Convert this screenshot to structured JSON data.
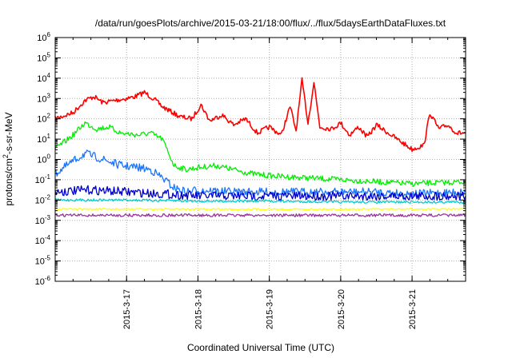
{
  "chart_data": {
    "type": "line",
    "title": "/data/run/goesPlots/archive/2015-03-21/18:00/flux/../flux/5daysEarthDataFluxes.txt",
    "xlabel": "Coordinated Universal Time (UTC)",
    "ylabel": {
      "pre": "protons/cm",
      "sup": "2",
      "post": "-s-sr-MeV"
    },
    "yscale": "log",
    "ylim": [
      -6,
      6
    ],
    "xlim": [
      "2015-03-16T00:00",
      "2015-03-21T18:00"
    ],
    "grid": true,
    "legend": "none",
    "y_ticks": [
      {
        "base": "10",
        "exp": "6"
      },
      {
        "base": "10",
        "exp": "5"
      },
      {
        "base": "10",
        "exp": "4"
      },
      {
        "base": "10",
        "exp": "3"
      },
      {
        "base": "10",
        "exp": "2"
      },
      {
        "base": "10",
        "exp": "1"
      },
      {
        "base": "10",
        "exp": "0"
      },
      {
        "base": "10",
        "exp": "-1"
      },
      {
        "base": "10",
        "exp": "-2"
      },
      {
        "base": "10",
        "exp": "-3"
      },
      {
        "base": "10",
        "exp": "-4"
      },
      {
        "base": "10",
        "exp": "-5"
      },
      {
        "base": "10",
        "exp": "-6"
      }
    ],
    "x_ticks": [
      {
        "label": "2015-3-17",
        "x": "2015-03-17T00:00"
      },
      {
        "label": "2015-3-18",
        "x": "2015-03-18T00:00"
      },
      {
        "label": "2015-3-19",
        "x": "2015-03-19T00:00"
      },
      {
        "label": "2015-3-20",
        "x": "2015-03-20T00:00"
      },
      {
        "label": "2015-3-21",
        "x": "2015-03-21T00:00"
      }
    ],
    "series": [
      {
        "color": "#ff0000",
        "points": [
          [
            "2015-03-16T00:00",
            2.0
          ],
          [
            "2015-03-16T06:00",
            2.3
          ],
          [
            "2015-03-16T10:00",
            2.9
          ],
          [
            "2015-03-16T13:00",
            3.1
          ],
          [
            "2015-03-16T16:00",
            2.8
          ],
          [
            "2015-03-16T20:00",
            2.9
          ],
          [
            "2015-03-17T00:00",
            3.0
          ],
          [
            "2015-03-17T03:00",
            3.1
          ],
          [
            "2015-03-17T06:00",
            3.3
          ],
          [
            "2015-03-17T09:00",
            3.0
          ],
          [
            "2015-03-17T12:00",
            2.6
          ],
          [
            "2015-03-17T18:00",
            2.1
          ],
          [
            "2015-03-17T22:00",
            2.0
          ],
          [
            "2015-03-18T01:00",
            2.7
          ],
          [
            "2015-03-18T04:00",
            1.9
          ],
          [
            "2015-03-18T08:00",
            2.2
          ],
          [
            "2015-03-18T12:00",
            1.7
          ],
          [
            "2015-03-18T16:00",
            2.0
          ],
          [
            "2015-03-18T20:00",
            1.3
          ],
          [
            "2015-03-19T00:00",
            1.6
          ],
          [
            "2015-03-19T04:00",
            1.2
          ],
          [
            "2015-03-19T07:00",
            2.6
          ],
          [
            "2015-03-19T09:00",
            1.4
          ],
          [
            "2015-03-19T11:00",
            3.9
          ],
          [
            "2015-03-19T13:00",
            1.8
          ],
          [
            "2015-03-19T15:00",
            3.8
          ],
          [
            "2015-03-19T17:00",
            1.6
          ],
          [
            "2015-03-19T21:00",
            1.5
          ],
          [
            "2015-03-20T00:00",
            1.8
          ],
          [
            "2015-03-20T03:00",
            1.2
          ],
          [
            "2015-03-20T06:00",
            1.6
          ],
          [
            "2015-03-20T09:00",
            1.1
          ],
          [
            "2015-03-20T12:00",
            1.7
          ],
          [
            "2015-03-20T16:00",
            1.3
          ],
          [
            "2015-03-20T20:00",
            0.9
          ],
          [
            "2015-03-21T00:00",
            0.5
          ],
          [
            "2015-03-21T04:00",
            0.7
          ],
          [
            "2015-03-21T06:00",
            2.3
          ],
          [
            "2015-03-21T09:00",
            1.5
          ],
          [
            "2015-03-21T12:00",
            1.7
          ],
          [
            "2015-03-21T15:00",
            1.3
          ],
          [
            "2015-03-21T18:00",
            1.3
          ]
        ]
      },
      {
        "color": "#00ee00",
        "points": [
          [
            "2015-03-16T00:00",
            0.5
          ],
          [
            "2015-03-16T06:00",
            1.2
          ],
          [
            "2015-03-16T10:00",
            1.8
          ],
          [
            "2015-03-16T14:00",
            1.5
          ],
          [
            "2015-03-16T18:00",
            1.6
          ],
          [
            "2015-03-16T22:00",
            1.3
          ],
          [
            "2015-03-17T04:00",
            1.2
          ],
          [
            "2015-03-17T08:00",
            1.3
          ],
          [
            "2015-03-17T12:00",
            1.0
          ],
          [
            "2015-03-17T16:00",
            -0.3
          ],
          [
            "2015-03-17T20:00",
            -0.5
          ],
          [
            "2015-03-18T00:00",
            -0.4
          ],
          [
            "2015-03-18T06:00",
            -0.3
          ],
          [
            "2015-03-18T12:00",
            -0.5
          ],
          [
            "2015-03-18T18:00",
            -0.7
          ],
          [
            "2015-03-19T00:00",
            -0.8
          ],
          [
            "2015-03-19T12:00",
            -0.9
          ],
          [
            "2015-03-20T00:00",
            -1.0
          ],
          [
            "2015-03-20T12:00",
            -1.1
          ],
          [
            "2015-03-21T00:00",
            -1.2
          ],
          [
            "2015-03-21T18:00",
            -1.1
          ]
        ]
      },
      {
        "color": "#1a75ff",
        "points": [
          [
            "2015-03-16T00:00",
            -0.7
          ],
          [
            "2015-03-16T06:00",
            -0.1
          ],
          [
            "2015-03-16T10:00",
            0.3
          ],
          [
            "2015-03-16T14:00",
            0.1
          ],
          [
            "2015-03-16T18:00",
            -0.1
          ],
          [
            "2015-03-16T22:00",
            -0.3
          ],
          [
            "2015-03-17T04:00",
            -0.4
          ],
          [
            "2015-03-17T08:00",
            -0.5
          ],
          [
            "2015-03-17T12:00",
            -0.9
          ],
          [
            "2015-03-17T16:00",
            -1.4
          ],
          [
            "2015-03-17T20:00",
            -1.6
          ],
          [
            "2015-03-18T00:00",
            -1.5
          ],
          [
            "2015-03-18T12:00",
            -1.6
          ],
          [
            "2015-03-19T00:00",
            -1.6
          ],
          [
            "2015-03-19T12:00",
            -1.6
          ],
          [
            "2015-03-20T00:00",
            -1.6
          ],
          [
            "2015-03-20T12:00",
            -1.6
          ],
          [
            "2015-03-21T00:00",
            -1.7
          ],
          [
            "2015-03-21T18:00",
            -1.6
          ]
        ]
      },
      {
        "color": "#0000cc",
        "points": [
          [
            "2015-03-16T00:00",
            -1.6
          ],
          [
            "2015-03-16T12:00",
            -1.5
          ],
          [
            "2015-03-17T00:00",
            -1.6
          ],
          [
            "2015-03-17T12:00",
            -1.7
          ],
          [
            "2015-03-18T00:00",
            -1.8
          ],
          [
            "2015-03-19T00:00",
            -1.8
          ],
          [
            "2015-03-20T00:00",
            -1.8
          ],
          [
            "2015-03-21T00:00",
            -1.8
          ],
          [
            "2015-03-21T18:00",
            -1.8
          ]
        ]
      },
      {
        "color": "#00cccc",
        "points": [
          [
            "2015-03-16T00:00",
            -2.0
          ],
          [
            "2015-03-17T00:00",
            -2.0
          ],
          [
            "2015-03-18T00:00",
            -2.05
          ],
          [
            "2015-03-19T00:00",
            -2.05
          ],
          [
            "2015-03-20T00:00",
            -2.1
          ],
          [
            "2015-03-21T00:00",
            -2.1
          ],
          [
            "2015-03-21T18:00",
            -2.1
          ]
        ]
      },
      {
        "color": "#ffff00",
        "points": [
          [
            "2015-03-16T00:00",
            -2.45
          ],
          [
            "2015-03-17T00:00",
            -2.45
          ],
          [
            "2015-03-18T00:00",
            -2.45
          ],
          [
            "2015-03-19T00:00",
            -2.45
          ],
          [
            "2015-03-20T00:00",
            -2.45
          ],
          [
            "2015-03-21T00:00",
            -2.45
          ],
          [
            "2015-03-21T18:00",
            -2.45
          ]
        ]
      },
      {
        "color": "#993399",
        "points": [
          [
            "2015-03-16T00:00",
            -2.75
          ],
          [
            "2015-03-17T00:00",
            -2.75
          ],
          [
            "2015-03-18T00:00",
            -2.75
          ],
          [
            "2015-03-19T00:00",
            -2.75
          ],
          [
            "2015-03-20T00:00",
            -2.75
          ],
          [
            "2015-03-21T00:00",
            -2.75
          ],
          [
            "2015-03-21T18:00",
            -2.75
          ]
        ]
      }
    ]
  }
}
